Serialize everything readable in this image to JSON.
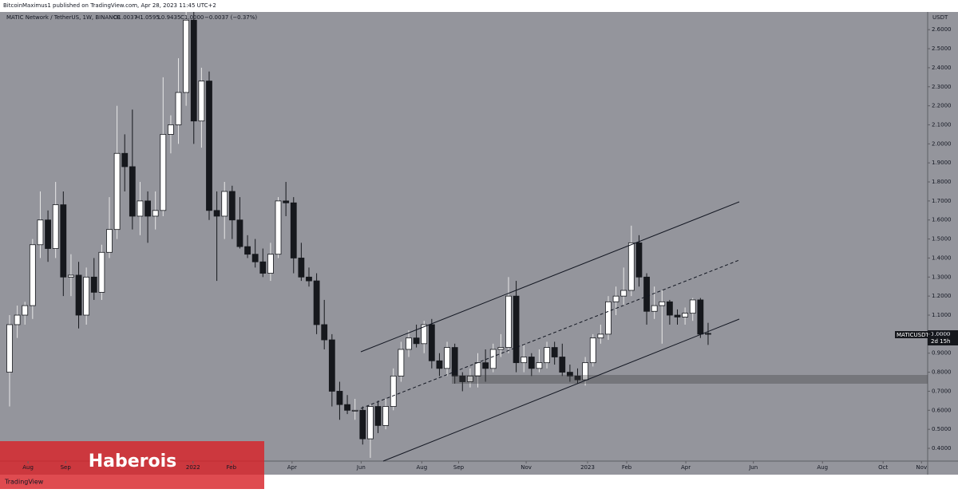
{
  "header": {
    "publisher": "BitcoinMaximus1 published on TradingView.com, Apr 28, 2023 11:45 UTC+2"
  },
  "watermark": "Haberois",
  "footer_logo": "TradingView",
  "chart_data": {
    "type": "candlestick",
    "title": "MATIC Network / TetherUS, 1W, BINANCE",
    "legend_values": {
      "open": "O1.0037",
      "high": "H1.0595",
      "low": "L0.9435",
      "close": "C1.0000",
      "change": "−0.0037 (−0.37%)"
    },
    "price_tag": {
      "symbol": "MATICUSDT",
      "price": "1.0000",
      "countdown": "2d 15h"
    },
    "y_unit": "USDT",
    "up_color": "#ffffff",
    "down_color": "#16181d",
    "background": "#94959c",
    "categories": [
      null,
      null,
      null,
      null,
      null,
      null,
      null,
      null,
      null,
      null,
      null,
      null,
      null,
      null,
      null,
      null,
      null,
      null,
      null,
      null,
      null,
      null,
      null,
      null,
      null,
      null,
      null,
      null,
      null,
      null,
      null,
      null,
      null,
      null,
      null,
      null,
      null,
      null,
      null,
      null,
      null,
      null,
      null,
      null,
      null,
      null,
      null,
      null,
      null,
      null,
      null,
      null,
      null,
      null,
      null,
      null,
      null,
      null,
      null,
      null,
      null,
      null,
      null,
      null,
      null,
      null,
      null,
      null,
      null,
      null,
      null,
      null,
      null,
      null,
      null,
      null,
      null,
      null,
      null,
      null,
      null,
      null,
      null,
      null,
      null,
      null,
      null,
      null,
      null,
      null,
      null,
      null
    ],
    "open": [
      0.8,
      1.05,
      1.1,
      1.15,
      1.47,
      1.6,
      1.45,
      1.68,
      1.3,
      1.31,
      1.1,
      1.3,
      1.22,
      1.43,
      1.55,
      1.95,
      1.88,
      1.62,
      1.7,
      1.62,
      1.65,
      2.05,
      2.1,
      2.27,
      2.65,
      2.12,
      2.33,
      1.65,
      1.62,
      1.75,
      1.6,
      1.46,
      1.42,
      1.38,
      1.32,
      1.42,
      1.7,
      1.69,
      1.4,
      1.3,
      1.28,
      1.05,
      0.97,
      0.7,
      0.63,
      0.6,
      0.6,
      0.45,
      0.62,
      0.52,
      0.62,
      0.78,
      0.92,
      0.98,
      0.95,
      1.05,
      0.86,
      0.82,
      0.93,
      0.78,
      0.75,
      0.78,
      0.85,
      0.82,
      0.92,
      0.93,
      1.2,
      0.85,
      0.88,
      0.82,
      0.85,
      0.93,
      0.88,
      0.8,
      0.78,
      0.76,
      0.85,
      0.98,
      1.0,
      1.17,
      1.2,
      1.23,
      1.48,
      1.3,
      1.12,
      1.15,
      1.17,
      1.1,
      1.09,
      1.11,
      1.18,
      1.0037
    ],
    "high": [
      1.1,
      1.15,
      1.17,
      1.5,
      1.75,
      1.65,
      1.8,
      1.75,
      1.42,
      1.38,
      1.35,
      1.4,
      1.47,
      1.72,
      2.2,
      2.05,
      2.18,
      1.8,
      1.75,
      1.75,
      2.35,
      2.15,
      2.45,
      2.75,
      2.7,
      2.4,
      2.38,
      1.75,
      1.8,
      1.78,
      1.72,
      1.52,
      1.5,
      1.45,
      1.48,
      1.72,
      1.8,
      1.72,
      1.48,
      1.35,
      1.32,
      1.18,
      1.0,
      0.75,
      0.68,
      0.66,
      0.62,
      0.63,
      0.65,
      0.66,
      0.82,
      0.96,
      1.02,
      1.05,
      1.07,
      1.08,
      0.9,
      0.96,
      0.95,
      0.8,
      0.82,
      0.9,
      0.92,
      0.95,
      1.0,
      1.3,
      1.28,
      0.95,
      0.9,
      0.92,
      0.96,
      0.96,
      0.95,
      0.84,
      0.82,
      0.88,
      1.0,
      1.05,
      1.2,
      1.25,
      1.35,
      1.57,
      1.52,
      1.32,
      1.25,
      1.23,
      1.18,
      1.13,
      1.14,
      1.19,
      1.19,
      1.0595
    ],
    "low": [
      0.62,
      0.98,
      1.05,
      1.08,
      1.4,
      1.38,
      1.4,
      1.2,
      1.2,
      1.03,
      1.05,
      1.18,
      1.18,
      1.4,
      1.5,
      1.75,
      1.55,
      1.52,
      1.48,
      1.55,
      1.62,
      1.95,
      2.0,
      2.2,
      2.0,
      1.98,
      1.6,
      1.28,
      1.5,
      1.5,
      1.45,
      1.4,
      1.35,
      1.3,
      1.28,
      1.4,
      1.62,
      1.32,
      1.28,
      1.25,
      1.0,
      0.92,
      0.62,
      0.55,
      0.58,
      0.55,
      0.42,
      0.35,
      0.48,
      0.5,
      0.6,
      0.75,
      0.88,
      0.93,
      0.9,
      0.82,
      0.78,
      0.78,
      0.74,
      0.7,
      0.72,
      0.72,
      0.75,
      0.8,
      0.88,
      0.9,
      0.8,
      0.8,
      0.78,
      0.8,
      0.82,
      0.84,
      0.78,
      0.75,
      0.74,
      0.73,
      0.83,
      0.95,
      0.97,
      1.1,
      1.15,
      1.2,
      1.25,
      1.05,
      1.08,
      0.95,
      1.05,
      1.05,
      1.05,
      1.07,
      0.98,
      0.9435
    ],
    "close": [
      1.05,
      1.1,
      1.15,
      1.47,
      1.6,
      1.45,
      1.68,
      1.3,
      1.31,
      1.1,
      1.3,
      1.22,
      1.43,
      1.55,
      1.95,
      1.88,
      1.62,
      1.7,
      1.62,
      1.65,
      2.05,
      2.1,
      2.27,
      2.65,
      2.12,
      2.33,
      1.65,
      1.62,
      1.75,
      1.6,
      1.46,
      1.42,
      1.38,
      1.32,
      1.42,
      1.7,
      1.69,
      1.4,
      1.3,
      1.28,
      1.05,
      0.97,
      0.7,
      0.63,
      0.6,
      0.6,
      0.45,
      0.62,
      0.52,
      0.62,
      0.78,
      0.92,
      0.98,
      0.95,
      1.05,
      0.86,
      0.82,
      0.93,
      0.78,
      0.75,
      0.78,
      0.85,
      0.82,
      0.92,
      0.93,
      1.2,
      0.85,
      0.88,
      0.82,
      0.85,
      0.93,
      0.88,
      0.8,
      0.78,
      0.76,
      0.85,
      0.98,
      1.0,
      1.17,
      1.2,
      1.23,
      1.48,
      1.3,
      1.12,
      1.15,
      1.17,
      1.1,
      1.09,
      1.11,
      1.18,
      1.0,
      1.0
    ],
    "ylim": [
      0.333,
      2.693
    ],
    "yticks": [
      {
        "value": 0.4,
        "label": "0.4000"
      },
      {
        "value": 0.5,
        "label": "0.5000"
      },
      {
        "value": 0.6,
        "label": "0.6000"
      },
      {
        "value": 0.7,
        "label": "0.7000"
      },
      {
        "value": 0.8,
        "label": "0.8000"
      },
      {
        "value": 0.9,
        "label": "0.9000"
      },
      {
        "value": 1.0,
        "label": "1.0000"
      },
      {
        "value": 1.1,
        "label": "1.1000"
      },
      {
        "value": 1.2,
        "label": "1.2000"
      },
      {
        "value": 1.3,
        "label": "1.3000"
      },
      {
        "value": 1.4,
        "label": "1.4000"
      },
      {
        "value": 1.5,
        "label": "1.5000"
      },
      {
        "value": 1.6,
        "label": "1.6000"
      },
      {
        "value": 1.7,
        "label": "1.7000"
      },
      {
        "value": 1.8,
        "label": "1.8000"
      },
      {
        "value": 1.9,
        "label": "1.9000"
      },
      {
        "value": 2.0,
        "label": "2.0000"
      },
      {
        "value": 2.1,
        "label": "2.1000"
      },
      {
        "value": 2.2,
        "label": "2.2000"
      },
      {
        "value": 2.3,
        "label": "2.3000"
      },
      {
        "value": 2.4,
        "label": "2.4000"
      },
      {
        "value": 2.5,
        "label": "2.5000"
      },
      {
        "value": 2.6,
        "label": "2.6000"
      }
    ],
    "xticks": [
      {
        "value": 2.4,
        "label": "Aug"
      },
      {
        "value": 7.3,
        "label": "Sep"
      },
      {
        "value": 23.9,
        "label": "2022"
      },
      {
        "value": 28.9,
        "label": "Feb"
      },
      {
        "value": 36.8,
        "label": "Apr"
      },
      {
        "value": 45.8,
        "label": "Jun"
      },
      {
        "value": 53.7,
        "label": "Aug"
      },
      {
        "value": 58.5,
        "label": "Sep"
      },
      {
        "value": 67.3,
        "label": "Nov"
      },
      {
        "value": 75.3,
        "label": "2023"
      },
      {
        "value": 80.4,
        "label": "Feb"
      },
      {
        "value": 88.1,
        "label": "Apr"
      },
      {
        "value": 96.9,
        "label": "Jun"
      },
      {
        "value": 105.9,
        "label": "Aug"
      },
      {
        "value": 113.8,
        "label": "Oct"
      },
      {
        "value": 118.8,
        "label": "Nov"
      }
    ],
    "grid": false
  }
}
